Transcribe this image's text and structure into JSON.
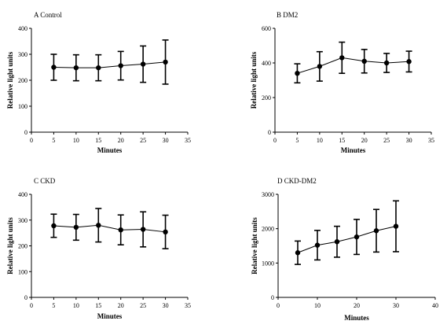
{
  "chart_data": [
    {
      "type": "line",
      "title": "A Control",
      "xlabel": "Minutes",
      "ylabel": "Relative light units",
      "xlim": [
        0,
        35
      ],
      "ylim": [
        0,
        400
      ],
      "xticks": [
        0,
        5,
        10,
        15,
        20,
        25,
        30,
        35
      ],
      "yticks": [
        0,
        100,
        200,
        300,
        400
      ],
      "grid": false,
      "series": [
        {
          "x": [
            5,
            10,
            15,
            20,
            25,
            30
          ],
          "y": [
            250,
            248,
            248,
            256,
            262,
            270
          ],
          "error": [
            50,
            50,
            50,
            55,
            70,
            85
          ]
        }
      ]
    },
    {
      "type": "line",
      "title": "B DM2",
      "xlabel": "Minutes",
      "ylabel": "Relative light units",
      "xlim": [
        0,
        35
      ],
      "ylim": [
        0,
        600
      ],
      "xticks": [
        0,
        5,
        10,
        15,
        20,
        25,
        30,
        35
      ],
      "yticks": [
        0,
        200,
        400,
        600
      ],
      "grid": false,
      "series": [
        {
          "x": [
            5,
            10,
            15,
            20,
            25,
            30
          ],
          "y": [
            340,
            380,
            430,
            410,
            400,
            408
          ],
          "error": [
            55,
            85,
            90,
            68,
            55,
            60
          ]
        }
      ]
    },
    {
      "type": "line",
      "title": "C CKD",
      "xlabel": "Minutes",
      "ylabel": "Relative light units",
      "xlim": [
        0,
        35
      ],
      "ylim": [
        0,
        400
      ],
      "xticks": [
        0,
        5,
        10,
        15,
        20,
        25,
        30,
        35
      ],
      "yticks": [
        0,
        100,
        200,
        300,
        400
      ],
      "grid": false,
      "series": [
        {
          "x": [
            5,
            10,
            15,
            20,
            25,
            30
          ],
          "y": [
            278,
            272,
            280,
            262,
            264,
            254
          ],
          "error": [
            45,
            50,
            65,
            58,
            68,
            65
          ]
        }
      ]
    },
    {
      "type": "line",
      "title": "D CKD-DM2",
      "xlabel": "Minutes",
      "ylabel": "Relative light units",
      "xlim": [
        0,
        40
      ],
      "ylim": [
        0,
        3000
      ],
      "xticks": [
        0,
        10,
        20,
        30,
        40
      ],
      "yticks": [
        0,
        1000,
        2000,
        3000
      ],
      "grid": false,
      "series": [
        {
          "x": [
            5,
            10,
            15,
            20,
            25,
            30
          ],
          "y": [
            1300,
            1520,
            1620,
            1760,
            1940,
            2070
          ],
          "error": [
            340,
            430,
            450,
            510,
            620,
            740
          ]
        }
      ]
    }
  ]
}
